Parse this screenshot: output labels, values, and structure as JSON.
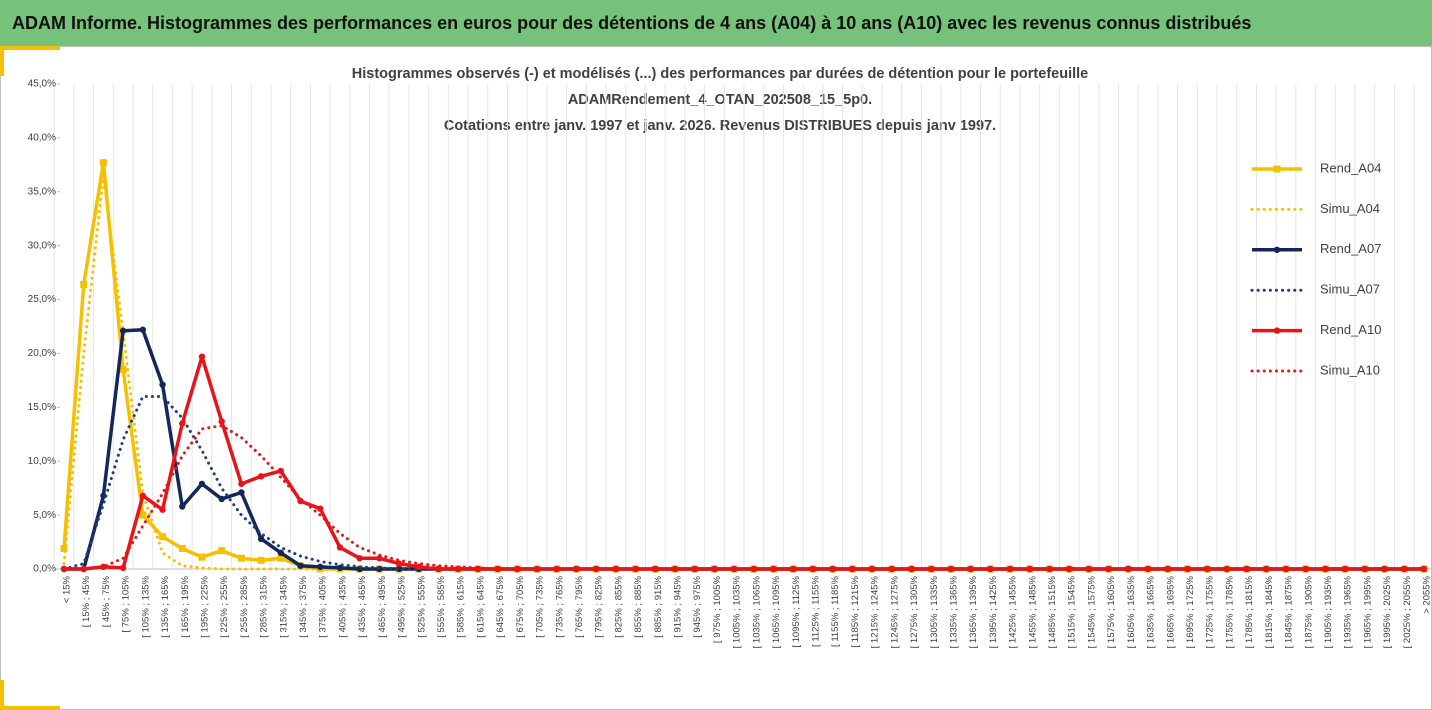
{
  "header": {
    "title": "ADAM Informe. Histogrammes des performances en euros pour des détentions de 4 ans (A04) à 10 ans (A10) avec les revenus connus distribués"
  },
  "chart_data": {
    "type": "line",
    "title": [
      "Histogrammes observés (-) et modélisés (...) des performances par durées de détention pour le portefeuille",
      "ADAMRendement_4_OTAN_202508_15_5p0.",
      "Cotations entre janv. 1997 et janv. 2026. Revenus DISTRIBUES depuis janv 1997."
    ],
    "categories": [
      "< 15%",
      "[ 15% ; 45%",
      "[ 45% ; 75%",
      "[ 75% ; 105%",
      "[ 105% ; 135%",
      "[ 135% ; 165%",
      "[ 165% ; 195%",
      "[ 195% ; 225%",
      "[ 225% ; 255%",
      "[ 255% ; 285%",
      "[ 285% ; 315%",
      "[ 315% ; 345%",
      "[ 345% ; 375%",
      "[ 375% ; 405%",
      "[ 405% ; 435%",
      "[ 435% ; 465%",
      "[ 465% ; 495%",
      "[ 495% ; 525%",
      "[ 525% ; 555%",
      "[ 555% ; 585%",
      "[ 585% ; 615%",
      "[ 615% ; 645%",
      "[ 645% ; 675%",
      "[ 675% ; 705%",
      "[ 705% ; 735%",
      "[ 735% ; 765%",
      "[ 765% ; 795%",
      "[ 795% ; 825%",
      "[ 825% ; 855%",
      "[ 855% ; 885%",
      "[ 885% ; 915%",
      "[ 915% ; 945%",
      "[ 945% ; 975%",
      "[ 975% ; 1005%",
      "[ 1005% ; 1035%",
      "[ 1035% ; 1065%",
      "[ 1065% ; 1095%",
      "[ 1095% ; 1125%",
      "[ 1125% ; 1155%",
      "[ 1155% ; 1185%",
      "[ 1185% ; 1215%",
      "[ 1215% ; 1245%",
      "[ 1245% ; 1275%",
      "[ 1275% ; 1305%",
      "[ 1305% ; 1335%",
      "[ 1335% ; 1365%",
      "[ 1365% ; 1395%",
      "[ 1395% ; 1425%",
      "[ 1425% ; 1455%",
      "[ 1455% ; 1485%",
      "[ 1485% ; 1515%",
      "[ 1515% ; 1545%",
      "[ 1545% ; 1575%",
      "[ 1575% ; 1605%",
      "[ 1605% ; 1635%",
      "[ 1635% ; 1665%",
      "[ 1665% ; 1695%",
      "[ 1695% ; 1725%",
      "[ 1725% ; 1755%",
      "[ 1755% ; 1785%",
      "[ 1785% ; 1815%",
      "[ 1815% ; 1845%",
      "[ 1845% ; 1875%",
      "[ 1875% ; 1905%",
      "[ 1905% ; 1935%",
      "[ 1935% ; 1965%",
      "[ 1965% ; 1995%",
      "[ 1995% ; 2025%",
      "[ 2025% ; 2055%",
      "> 2055%"
    ],
    "series": [
      {
        "name": "Rend_A04",
        "color": "#f5c000",
        "style": "solid",
        "marker": "square",
        "values": [
          1.9,
          26.4,
          37.7,
          18.5,
          5.0,
          3.0,
          1.9,
          1.1,
          1.7,
          1.0,
          0.8,
          1.0,
          0.3,
          0,
          0,
          0,
          0,
          0,
          0,
          0,
          0,
          0,
          0,
          0,
          0,
          0,
          0,
          0,
          0,
          0,
          0,
          0,
          0,
          0,
          0,
          0,
          0,
          0,
          0,
          0,
          0,
          0,
          0,
          0,
          0,
          0,
          0,
          0,
          0,
          0,
          0,
          0,
          0,
          0,
          0,
          0,
          0,
          0,
          0,
          0,
          0,
          0,
          0,
          0,
          0,
          0,
          0,
          0,
          0,
          0
        ]
      },
      {
        "name": "Simu_A04",
        "color": "#f5c000",
        "style": "dotted",
        "marker": null,
        "values": [
          0.5,
          20,
          36.5,
          22,
          7,
          1.5,
          0.3,
          0.1,
          0,
          0,
          0,
          0,
          0,
          0,
          0,
          0,
          0,
          0,
          0,
          0,
          0,
          0,
          0,
          0,
          0,
          0,
          0,
          0,
          0,
          0,
          0,
          0,
          0,
          0,
          0,
          0,
          0,
          0,
          0,
          0,
          0,
          0,
          0,
          0,
          0,
          0,
          0,
          0,
          0,
          0,
          0,
          0,
          0,
          0,
          0,
          0,
          0,
          0,
          0,
          0,
          0,
          0,
          0,
          0,
          0,
          0,
          0,
          0,
          0,
          0
        ]
      },
      {
        "name": "Rend_A07",
        "color": "#13275a",
        "style": "solid",
        "marker": "circle",
        "values": [
          0,
          0,
          6.8,
          22.1,
          22.2,
          17.1,
          5.8,
          7.9,
          6.5,
          7.1,
          2.8,
          1.5,
          0.3,
          0.2,
          0.1,
          0,
          0,
          0,
          0,
          0,
          0,
          0,
          0,
          0,
          0,
          0,
          0,
          0,
          0,
          0,
          0,
          0,
          0,
          0,
          0,
          0,
          0,
          0,
          0,
          0,
          0,
          0,
          0,
          0,
          0,
          0,
          0,
          0,
          0,
          0,
          0,
          0,
          0,
          0,
          0,
          0,
          0,
          0,
          0,
          0,
          0,
          0,
          0,
          0,
          0,
          0,
          0,
          0,
          0,
          0
        ]
      },
      {
        "name": "Simu_A07",
        "color": "#1f3f7a",
        "style": "dotted",
        "marker": null,
        "values": [
          0,
          0.5,
          6,
          12,
          16,
          16,
          14,
          11,
          7.5,
          5,
          3.3,
          2,
          1.2,
          0.7,
          0.4,
          0.2,
          0.1,
          0,
          0,
          0,
          0,
          0,
          0,
          0,
          0,
          0,
          0,
          0,
          0,
          0,
          0,
          0,
          0,
          0,
          0,
          0,
          0,
          0,
          0,
          0,
          0,
          0,
          0,
          0,
          0,
          0,
          0,
          0,
          0,
          0,
          0,
          0,
          0,
          0,
          0,
          0,
          0,
          0,
          0,
          0,
          0,
          0,
          0,
          0,
          0,
          0,
          0,
          0,
          0,
          0
        ]
      },
      {
        "name": "Rend_A10",
        "color": "#e8141a",
        "style": "solid",
        "marker": "circle",
        "values": [
          0,
          0,
          0.2,
          0.1,
          6.8,
          5.5,
          13.5,
          19.7,
          13.7,
          7.9,
          8.6,
          9.1,
          6.3,
          5.6,
          2,
          1,
          1,
          0.5,
          0.2,
          0,
          0,
          0,
          0,
          0,
          0,
          0,
          0,
          0,
          0,
          0,
          0,
          0,
          0,
          0,
          0,
          0,
          0,
          0,
          0,
          0,
          0,
          0,
          0,
          0,
          0,
          0,
          0,
          0,
          0,
          0,
          0,
          0,
          0,
          0,
          0,
          0,
          0,
          0,
          0,
          0,
          0,
          0,
          0,
          0,
          0,
          0,
          0,
          0,
          0,
          0
        ]
      },
      {
        "name": "Simu_A10",
        "color": "#e8141a",
        "style": "dotted",
        "marker": null,
        "values": [
          0,
          0,
          0.2,
          1,
          4,
          7,
          10.5,
          13,
          13.3,
          12.2,
          10.5,
          8.5,
          6.5,
          5,
          3.3,
          2,
          1.3,
          0.8,
          0.5,
          0.3,
          0.2,
          0.1,
          0,
          0,
          0,
          0,
          0,
          0,
          0,
          0,
          0,
          0,
          0,
          0,
          0,
          0,
          0,
          0,
          0,
          0,
          0,
          0,
          0,
          0,
          0,
          0,
          0,
          0,
          0,
          0,
          0,
          0,
          0,
          0,
          0,
          0,
          0,
          0,
          0,
          0,
          0,
          0,
          0,
          0,
          0,
          0,
          0,
          0,
          0,
          0
        ]
      }
    ],
    "ylim": [
      0,
      45
    ],
    "yticks": [
      {
        "value": 0,
        "label": "0,0%"
      },
      {
        "value": 5,
        "label": "5,0%"
      },
      {
        "value": 10,
        "label": "10,0%"
      },
      {
        "value": 15,
        "label": "15,0%"
      },
      {
        "value": 20,
        "label": "20,0%"
      },
      {
        "value": 25,
        "label": "25,0%"
      },
      {
        "value": 30,
        "label": "30,0%"
      },
      {
        "value": 35,
        "label": "35,0%"
      },
      {
        "value": 40,
        "label": "40,0%"
      },
      {
        "value": 45,
        "label": "45,0%"
      }
    ],
    "grid": false,
    "legend": "right"
  }
}
